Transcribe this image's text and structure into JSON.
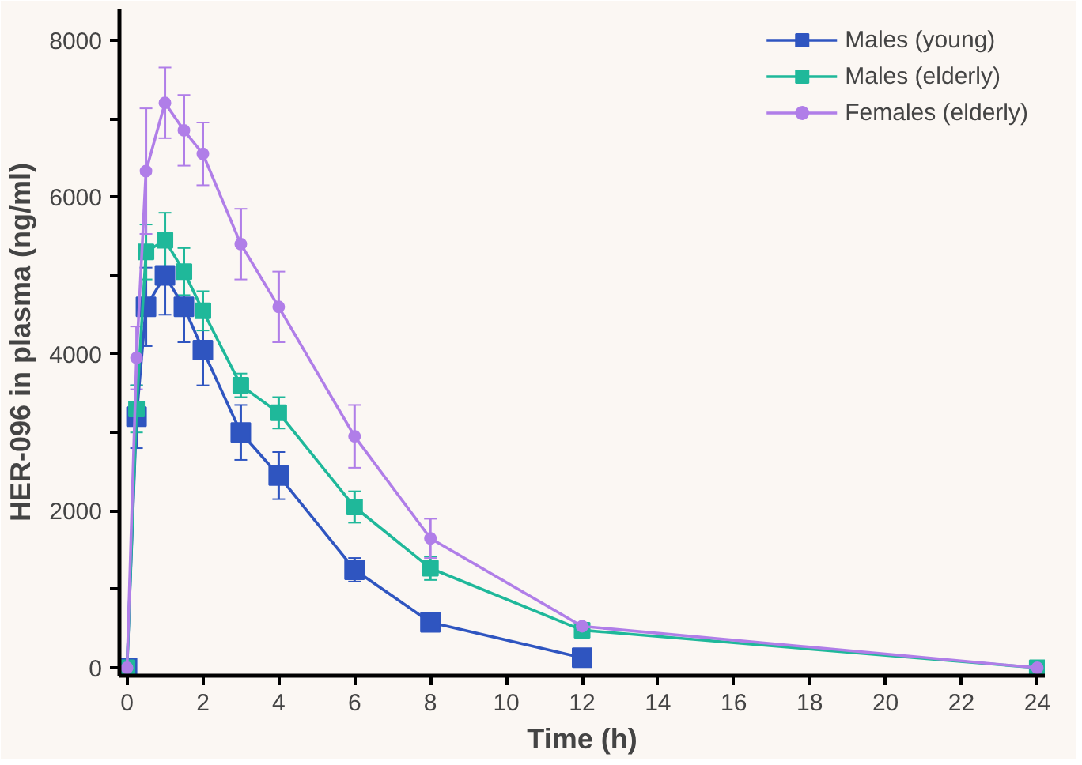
{
  "chart_data": {
    "type": "line",
    "xlabel": "Time (h)",
    "ylabel": "HER-096 in plasma (ng/ml)",
    "xlim": [
      -0.2,
      24.2
    ],
    "ylim": [
      -100,
      8400
    ],
    "xticks": [
      0,
      2,
      4,
      6,
      8,
      10,
      12,
      14,
      16,
      18,
      20,
      22,
      24
    ],
    "yticks": [
      0,
      {
        "value": 1000,
        "label": null
      },
      2000,
      {
        "value": 3000,
        "label": null
      },
      4000,
      {
        "value": 5000,
        "label": null
      },
      6000,
      {
        "value": 7000,
        "label": null
      },
      8000
    ],
    "grid": false,
    "legend": "top right",
    "series": [
      {
        "name": "Males (young)",
        "color": "#2f55c0",
        "marker": "square",
        "x": [
          0,
          0.25,
          0.5,
          1,
          1.5,
          2,
          3,
          4,
          6,
          8,
          12
        ],
        "values": [
          0,
          3200,
          4600,
          5000,
          4600,
          4050,
          3000,
          2450,
          1250,
          580,
          130
        ],
        "errors": [
          null,
          400,
          500,
          500,
          450,
          450,
          350,
          300,
          150,
          null,
          null
        ]
      },
      {
        "name": "Males (elderly)",
        "color": "#1fb89a",
        "marker": "square",
        "x": [
          0,
          0.25,
          0.5,
          1,
          1.5,
          2,
          3,
          4,
          6,
          8,
          12,
          24
        ],
        "values": [
          0,
          3300,
          5300,
          5450,
          5050,
          4550,
          3600,
          3250,
          2050,
          1270,
          480,
          0
        ],
        "errors": [
          null,
          300,
          350,
          350,
          300,
          250,
          150,
          200,
          200,
          150,
          null,
          null
        ]
      },
      {
        "name": "Females (elderly)",
        "color": "#b07ee8",
        "marker": "circle",
        "x": [
          0,
          0.25,
          0.5,
          1,
          1.5,
          2,
          3,
          4,
          6,
          8,
          12,
          24
        ],
        "values": [
          0,
          3950,
          6330,
          7200,
          6850,
          6550,
          5400,
          4600,
          2950,
          1650,
          530,
          0
        ],
        "errors": [
          null,
          400,
          800,
          450,
          450,
          400,
          450,
          450,
          400,
          250,
          null,
          null
        ]
      }
    ]
  }
}
